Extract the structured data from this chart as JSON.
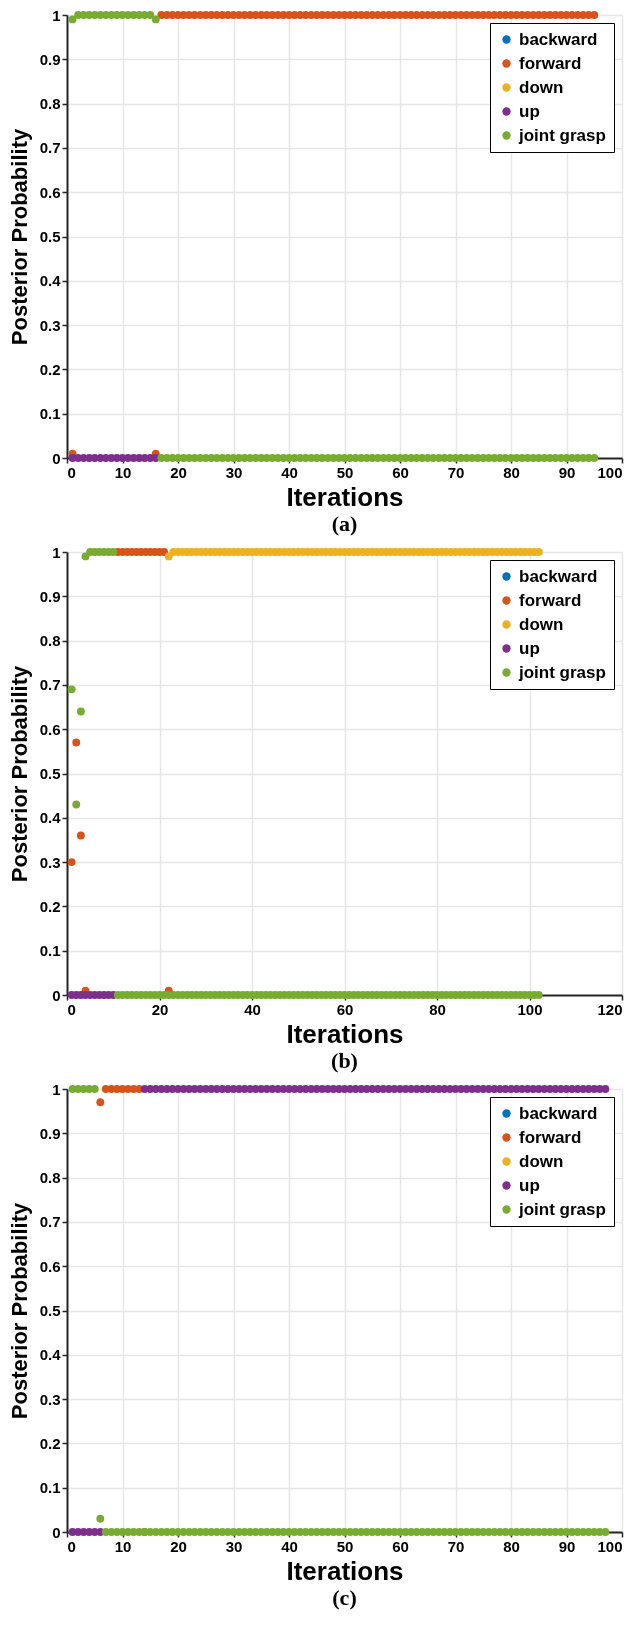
{
  "chart_data": [
    {
      "type": "scatter",
      "xlabel": "Iterations",
      "ylabel": "Posterior Probability",
      "annotations": [
        "(a)"
      ],
      "xlim": [
        0,
        100
      ],
      "xticks": [
        0,
        10,
        20,
        30,
        40,
        50,
        60,
        70,
        80,
        90,
        100
      ],
      "ylim": [
        0,
        1
      ],
      "yticks": [
        0,
        0.1,
        0.2,
        0.3,
        0.4,
        0.5,
        0.6,
        0.7,
        0.8,
        0.9,
        1
      ],
      "grid": true,
      "legend": "top right",
      "marker": "circle",
      "series": [
        {
          "name": "backward",
          "color": "#0072bd"
        },
        {
          "name": "forward",
          "color": "#d95319",
          "x": [
            1,
            16,
            17,
            18,
            19,
            20,
            21,
            22,
            23,
            24,
            25,
            26,
            27,
            28,
            29,
            30,
            31,
            32,
            33,
            34,
            35,
            36,
            37,
            38,
            39,
            40,
            41,
            42,
            43,
            44,
            45,
            46,
            47,
            48,
            49,
            50,
            51,
            52,
            53,
            54,
            55,
            56,
            57,
            58,
            59,
            60,
            61,
            62,
            63,
            64,
            65,
            66,
            67,
            68,
            69,
            70,
            71,
            72,
            73,
            74,
            75,
            76,
            77,
            78,
            79,
            80,
            81,
            82,
            83,
            84,
            85,
            86,
            87,
            88,
            89,
            90,
            91,
            92,
            93,
            94,
            95
          ],
          "values": [
            0.01,
            0.01,
            1,
            1,
            1,
            1,
            1,
            1,
            1,
            1,
            1,
            1,
            1,
            1,
            1,
            1,
            1,
            1,
            1,
            1,
            1,
            1,
            1,
            1,
            1,
            1,
            1,
            1,
            1,
            1,
            1,
            1,
            1,
            1,
            1,
            1,
            1,
            1,
            1,
            1,
            1,
            1,
            1,
            1,
            1,
            1,
            1,
            1,
            1,
            1,
            1,
            1,
            1,
            1,
            1,
            1,
            1,
            1,
            1,
            1,
            1,
            1,
            1,
            1,
            1,
            1,
            1,
            1,
            1,
            1,
            1,
            1,
            1,
            1,
            1,
            1,
            1,
            1,
            1,
            1,
            1
          ]
        },
        {
          "name": "down",
          "color": "#edb120"
        },
        {
          "name": "up",
          "color": "#7e2f8e",
          "x": [
            1,
            2,
            3,
            4,
            5,
            6,
            7,
            8,
            9,
            10,
            11,
            12,
            13,
            14,
            15,
            16
          ],
          "values": [
            0,
            0,
            0,
            0,
            0,
            0,
            0,
            0,
            0,
            0,
            0,
            0,
            0,
            0,
            0,
            0
          ]
        },
        {
          "name": "joint grasp",
          "color": "#77ac30",
          "x": [
            1,
            2,
            3,
            4,
            5,
            6,
            7,
            8,
            9,
            10,
            11,
            12,
            13,
            14,
            15,
            16,
            17,
            18,
            19,
            20,
            21,
            22,
            23,
            24,
            25,
            26,
            27,
            28,
            29,
            30,
            31,
            32,
            33,
            34,
            35,
            36,
            37,
            38,
            39,
            40,
            41,
            42,
            43,
            44,
            45,
            46,
            47,
            48,
            49,
            50,
            51,
            52,
            53,
            54,
            55,
            56,
            57,
            58,
            59,
            60,
            61,
            62,
            63,
            64,
            65,
            66,
            67,
            68,
            69,
            70,
            71,
            72,
            73,
            74,
            75,
            76,
            77,
            78,
            79,
            80,
            81,
            82,
            83,
            84,
            85,
            86,
            87,
            88,
            89,
            90,
            91,
            92,
            93,
            94,
            95
          ],
          "values": [
            0.99,
            1,
            1,
            1,
            1,
            1,
            1,
            1,
            1,
            1,
            1,
            1,
            1,
            1,
            1,
            0.99,
            0,
            0,
            0,
            0,
            0,
            0,
            0,
            0,
            0,
            0,
            0,
            0,
            0,
            0,
            0,
            0,
            0,
            0,
            0,
            0,
            0,
            0,
            0,
            0,
            0,
            0,
            0,
            0,
            0,
            0,
            0,
            0,
            0,
            0,
            0,
            0,
            0,
            0,
            0,
            0,
            0,
            0,
            0,
            0,
            0,
            0,
            0,
            0,
            0,
            0,
            0,
            0,
            0,
            0,
            0,
            0,
            0,
            0,
            0,
            0,
            0,
            0,
            0,
            0,
            0,
            0,
            0,
            0,
            0,
            0,
            0,
            0,
            0,
            0,
            0,
            0,
            0,
            0,
            0
          ]
        }
      ]
    },
    {
      "type": "scatter",
      "xlabel": "Iterations",
      "ylabel": "Posterior Probability",
      "annotations": [
        "(b)"
      ],
      "xlim": [
        0,
        120
      ],
      "xticks": [
        0,
        20,
        40,
        60,
        80,
        100,
        120
      ],
      "ylim": [
        0,
        1
      ],
      "yticks": [
        0,
        0.1,
        0.2,
        0.3,
        0.4,
        0.5,
        0.6,
        0.7,
        0.8,
        0.9,
        1
      ],
      "grid": true,
      "legend": "top right",
      "marker": "circle",
      "series": [
        {
          "name": "backward",
          "color": "#0072bd"
        },
        {
          "name": "forward",
          "color": "#d95319",
          "x": [
            1,
            2,
            3,
            4,
            11,
            12,
            13,
            14,
            15,
            16,
            17,
            18,
            19,
            20,
            21,
            22
          ],
          "values": [
            0.3,
            0.57,
            0.36,
            0.01,
            1,
            1,
            1,
            1,
            1,
            1,
            1,
            1,
            1,
            1,
            1,
            0.01
          ]
        },
        {
          "name": "down",
          "color": "#edb120",
          "x": [
            22,
            23,
            24,
            25,
            26,
            27,
            28,
            29,
            30,
            31,
            32,
            33,
            34,
            35,
            36,
            37,
            38,
            39,
            40,
            41,
            42,
            43,
            44,
            45,
            46,
            47,
            48,
            49,
            50,
            51,
            52,
            53,
            54,
            55,
            56,
            57,
            58,
            59,
            60,
            61,
            62,
            63,
            64,
            65,
            66,
            67,
            68,
            69,
            70,
            71,
            72,
            73,
            74,
            75,
            76,
            77,
            78,
            79,
            80,
            81,
            82,
            83,
            84,
            85,
            86,
            87,
            88,
            89,
            90,
            91,
            92,
            93,
            94,
            95,
            96,
            97,
            98,
            99,
            100,
            101,
            102
          ],
          "values": [
            0.99,
            1,
            1,
            1,
            1,
            1,
            1,
            1,
            1,
            1,
            1,
            1,
            1,
            1,
            1,
            1,
            1,
            1,
            1,
            1,
            1,
            1,
            1,
            1,
            1,
            1,
            1,
            1,
            1,
            1,
            1,
            1,
            1,
            1,
            1,
            1,
            1,
            1,
            1,
            1,
            1,
            1,
            1,
            1,
            1,
            1,
            1,
            1,
            1,
            1,
            1,
            1,
            1,
            1,
            1,
            1,
            1,
            1,
            1,
            1,
            1,
            1,
            1,
            1,
            1,
            1,
            1,
            1,
            1,
            1,
            1,
            1,
            1,
            1,
            1,
            1,
            1,
            1,
            1,
            1,
            1
          ]
        },
        {
          "name": "up",
          "color": "#7e2f8e",
          "x": [
            1,
            2,
            3,
            4,
            5,
            6,
            7,
            8,
            9,
            10
          ],
          "values": [
            0,
            0,
            0,
            0,
            0,
            0,
            0,
            0,
            0,
            0
          ]
        },
        {
          "name": "joint grasp",
          "color": "#77ac30",
          "x": [
            1,
            2,
            3,
            4,
            5,
            6,
            7,
            8,
            9,
            10,
            11,
            12,
            13,
            14,
            15,
            16,
            17,
            18,
            19,
            20,
            21,
            22,
            23,
            24,
            25,
            26,
            27,
            28,
            29,
            30,
            31,
            32,
            33,
            34,
            35,
            36,
            37,
            38,
            39,
            40,
            41,
            42,
            43,
            44,
            45,
            46,
            47,
            48,
            49,
            50,
            51,
            52,
            53,
            54,
            55,
            56,
            57,
            58,
            59,
            60,
            61,
            62,
            63,
            64,
            65,
            66,
            67,
            68,
            69,
            70,
            71,
            72,
            73,
            74,
            75,
            76,
            77,
            78,
            79,
            80,
            81,
            82,
            83,
            84,
            85,
            86,
            87,
            88,
            89,
            90,
            91,
            92,
            93,
            94,
            95,
            96,
            97,
            98,
            99,
            100,
            101,
            102
          ],
          "values": [
            0.69,
            0.43,
            0.64,
            0.99,
            1,
            1,
            1,
            1,
            1,
            1,
            0,
            0,
            0,
            0,
            0,
            0,
            0,
            0,
            0,
            0,
            0,
            0,
            0,
            0,
            0,
            0,
            0,
            0,
            0,
            0,
            0,
            0,
            0,
            0,
            0,
            0,
            0,
            0,
            0,
            0,
            0,
            0,
            0,
            0,
            0,
            0,
            0,
            0,
            0,
            0,
            0,
            0,
            0,
            0,
            0,
            0,
            0,
            0,
            0,
            0,
            0,
            0,
            0,
            0,
            0,
            0,
            0,
            0,
            0,
            0,
            0,
            0,
            0,
            0,
            0,
            0,
            0,
            0,
            0,
            0,
            0,
            0,
            0,
            0,
            0,
            0,
            0,
            0,
            0,
            0,
            0,
            0,
            0,
            0,
            0,
            0,
            0,
            0,
            0,
            0,
            0,
            0
          ]
        }
      ]
    },
    {
      "type": "scatter",
      "xlabel": "Iterations",
      "ylabel": "Posterior Probability",
      "annotations": [
        "(c)"
      ],
      "xlim": [
        0,
        100
      ],
      "xticks": [
        0,
        10,
        20,
        30,
        40,
        50,
        60,
        70,
        80,
        90,
        100
      ],
      "ylim": [
        0,
        1
      ],
      "yticks": [
        0,
        0.1,
        0.2,
        0.3,
        0.4,
        0.5,
        0.6,
        0.7,
        0.8,
        0.9,
        1
      ],
      "grid": true,
      "legend": "top right",
      "marker": "circle",
      "series": [
        {
          "name": "backward",
          "color": "#0072bd"
        },
        {
          "name": "forward",
          "color": "#d95319",
          "x": [
            6,
            7,
            8,
            9,
            10,
            11,
            12,
            13,
            14
          ],
          "values": [
            0.97,
            1,
            1,
            1,
            1,
            1,
            1,
            1,
            0
          ]
        },
        {
          "name": "down",
          "color": "#edb120"
        },
        {
          "name": "up",
          "color": "#7e2f8e",
          "x": [
            1,
            2,
            3,
            4,
            5,
            6,
            14,
            15,
            16,
            17,
            18,
            19,
            20,
            21,
            22,
            23,
            24,
            25,
            26,
            27,
            28,
            29,
            30,
            31,
            32,
            33,
            34,
            35,
            36,
            37,
            38,
            39,
            40,
            41,
            42,
            43,
            44,
            45,
            46,
            47,
            48,
            49,
            50,
            51,
            52,
            53,
            54,
            55,
            56,
            57,
            58,
            59,
            60,
            61,
            62,
            63,
            64,
            65,
            66,
            67,
            68,
            69,
            70,
            71,
            72,
            73,
            74,
            75,
            76,
            77,
            78,
            79,
            80,
            81,
            82,
            83,
            84,
            85,
            86,
            87,
            88,
            89,
            90,
            91,
            92,
            93,
            94,
            95,
            96,
            97
          ],
          "values": [
            0,
            0,
            0,
            0,
            0,
            0,
            1,
            1,
            1,
            1,
            1,
            1,
            1,
            1,
            1,
            1,
            1,
            1,
            1,
            1,
            1,
            1,
            1,
            1,
            1,
            1,
            1,
            1,
            1,
            1,
            1,
            1,
            1,
            1,
            1,
            1,
            1,
            1,
            1,
            1,
            1,
            1,
            1,
            1,
            1,
            1,
            1,
            1,
            1,
            1,
            1,
            1,
            1,
            1,
            1,
            1,
            1,
            1,
            1,
            1,
            1,
            1,
            1,
            1,
            1,
            1,
            1,
            1,
            1,
            1,
            1,
            1,
            1,
            1,
            1,
            1,
            1,
            1,
            1,
            1,
            1,
            1,
            1,
            1,
            1,
            1,
            1,
            1,
            1,
            1
          ]
        },
        {
          "name": "joint grasp",
          "color": "#77ac30",
          "x": [
            1,
            2,
            3,
            4,
            5,
            6,
            7,
            8,
            9,
            10,
            11,
            12,
            13,
            14,
            15,
            16,
            17,
            18,
            19,
            20,
            21,
            22,
            23,
            24,
            25,
            26,
            27,
            28,
            29,
            30,
            31,
            32,
            33,
            34,
            35,
            36,
            37,
            38,
            39,
            40,
            41,
            42,
            43,
            44,
            45,
            46,
            47,
            48,
            49,
            50,
            51,
            52,
            53,
            54,
            55,
            56,
            57,
            58,
            59,
            60,
            61,
            62,
            63,
            64,
            65,
            66,
            67,
            68,
            69,
            70,
            71,
            72,
            73,
            74,
            75,
            76,
            77,
            78,
            79,
            80,
            81,
            82,
            83,
            84,
            85,
            86,
            87,
            88,
            89,
            90,
            91,
            92,
            93,
            94,
            95,
            96,
            97
          ],
          "values": [
            1,
            1,
            1,
            1,
            1,
            0.03,
            0,
            0,
            0,
            0,
            0,
            0,
            0,
            0,
            0,
            0,
            0,
            0,
            0,
            0,
            0,
            0,
            0,
            0,
            0,
            0,
            0,
            0,
            0,
            0,
            0,
            0,
            0,
            0,
            0,
            0,
            0,
            0,
            0,
            0,
            0,
            0,
            0,
            0,
            0,
            0,
            0,
            0,
            0,
            0,
            0,
            0,
            0,
            0,
            0,
            0,
            0,
            0,
            0,
            0,
            0,
            0,
            0,
            0,
            0,
            0,
            0,
            0,
            0,
            0,
            0,
            0,
            0,
            0,
            0,
            0,
            0,
            0,
            0,
            0,
            0,
            0,
            0,
            0,
            0,
            0,
            0,
            0,
            0,
            0,
            0,
            0,
            0,
            0,
            0,
            0,
            0
          ]
        }
      ]
    }
  ]
}
